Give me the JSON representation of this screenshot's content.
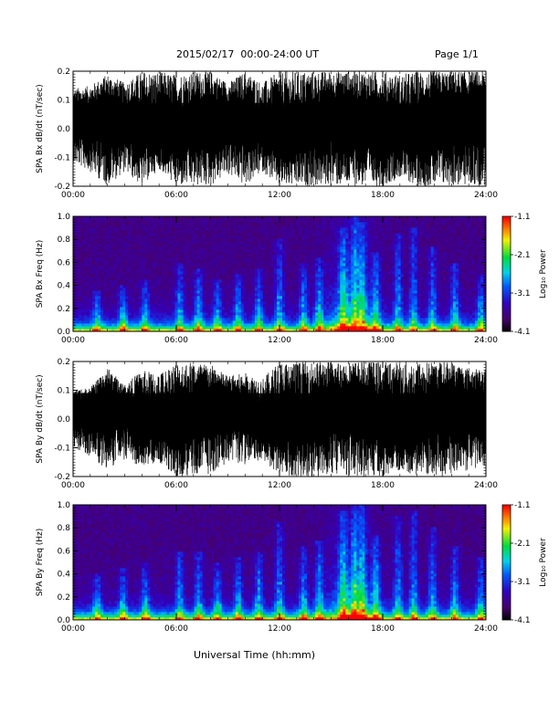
{
  "header": {
    "date_range": "2015/02/17  00:00-24:00 UT",
    "page": "Page 1/1"
  },
  "footer": {
    "xlabel": "Universal Time (hh:mm)"
  },
  "chart_data": [
    {
      "type": "line",
      "ylabel": "SPA Bx dB/dt (nT/sec)",
      "x_ticks": [
        "00:00",
        "06:00",
        "12:00",
        "18:00",
        "24:00"
      ],
      "xlim": [
        0,
        24
      ],
      "y_ticks": [
        "0.2",
        "0.1",
        "0.0",
        "-0.1",
        "-0.2"
      ],
      "y_tick_values": [
        0.2,
        0.1,
        0.0,
        -0.1,
        -0.2
      ],
      "ylim": [
        -0.2,
        0.2
      ],
      "x": [
        0,
        1,
        2,
        3,
        4,
        5,
        6,
        7,
        8,
        9,
        10,
        11,
        12,
        13,
        14,
        15,
        16,
        17,
        18,
        19,
        20,
        21,
        22,
        23,
        24
      ],
      "y_max": [
        0.14,
        0.15,
        0.19,
        0.16,
        0.2,
        0.2,
        0.19,
        0.2,
        0.2,
        0.16,
        0.2,
        0.16,
        0.2,
        0.2,
        0.2,
        0.2,
        0.2,
        0.2,
        0.2,
        0.19,
        0.2,
        0.2,
        0.2,
        0.2,
        0.2
      ],
      "y_min": [
        -0.12,
        -0.15,
        -0.2,
        -0.15,
        -0.2,
        -0.14,
        -0.2,
        -0.2,
        -0.2,
        -0.16,
        -0.2,
        -0.15,
        -0.2,
        -0.2,
        -0.2,
        -0.2,
        -0.2,
        -0.2,
        -0.2,
        -0.17,
        -0.2,
        -0.2,
        -0.2,
        -0.2,
        -0.2
      ]
    },
    {
      "type": "heatmap",
      "ylabel": "SPA Bx Freq (Hz)",
      "x_ticks": [
        "00:00",
        "06:00",
        "12:00",
        "18:00",
        "24:00"
      ],
      "xlim": [
        0,
        24
      ],
      "y_ticks": [
        "1.0",
        "0.8",
        "0.6",
        "0.4",
        "0.2",
        "0.0"
      ],
      "y_tick_values": [
        1.0,
        0.8,
        0.6,
        0.4,
        0.2,
        0.0
      ],
      "ylim": [
        0,
        1
      ],
      "colorbar_label": "Log₁₀ Power",
      "colorbar_ticks": [
        "-1.1",
        "-2.1",
        "-3.1",
        "-4.1"
      ],
      "colorbar_tick_values": [
        -1.1,
        -2.1,
        -3.1,
        -4.1
      ],
      "zlim": [
        -4.1,
        -1.1
      ],
      "burst_hours": [
        1.4,
        2.9,
        4.2,
        6.2,
        7.3,
        8.4,
        9.6,
        10.8,
        12.0,
        13.4,
        14.3,
        15.7,
        16.4,
        16.8,
        17.6,
        18.9,
        19.8,
        20.9,
        22.2,
        23.7
      ],
      "burst_top_freq": [
        0.35,
        0.4,
        0.45,
        0.6,
        0.55,
        0.45,
        0.5,
        0.55,
        0.8,
        0.6,
        0.65,
        0.9,
        1.0,
        0.95,
        0.7,
        0.85,
        0.9,
        0.75,
        0.6,
        0.5
      ]
    },
    {
      "type": "line",
      "ylabel": "SPA By dB/dt (nT/sec)",
      "x_ticks": [
        "00:00",
        "06:00",
        "12:00",
        "18:00",
        "24:00"
      ],
      "xlim": [
        0,
        24
      ],
      "y_ticks": [
        "0.2",
        "0.1",
        "0.0",
        "-0.1",
        "-0.2"
      ],
      "y_tick_values": [
        0.2,
        0.1,
        0.0,
        -0.1,
        -0.2
      ],
      "ylim": [
        -0.2,
        0.2
      ],
      "x": [
        0,
        1,
        2,
        3,
        4,
        5,
        6,
        7,
        8,
        9,
        10,
        11,
        12,
        13,
        14,
        15,
        16,
        17,
        18,
        19,
        20,
        21,
        22,
        23,
        24
      ],
      "y_max": [
        0.1,
        0.11,
        0.18,
        0.12,
        0.17,
        0.16,
        0.2,
        0.2,
        0.19,
        0.15,
        0.16,
        0.14,
        0.2,
        0.2,
        0.2,
        0.2,
        0.2,
        0.2,
        0.2,
        0.2,
        0.2,
        0.2,
        0.2,
        0.18,
        0.17
      ],
      "y_min": [
        -0.1,
        -0.13,
        -0.18,
        -0.14,
        -0.17,
        -0.15,
        -0.2,
        -0.2,
        -0.19,
        -0.15,
        -0.16,
        -0.14,
        -0.2,
        -0.2,
        -0.2,
        -0.2,
        -0.2,
        -0.2,
        -0.2,
        -0.18,
        -0.2,
        -0.2,
        -0.2,
        -0.18,
        -0.16
      ]
    },
    {
      "type": "heatmap",
      "ylabel": "SPA By Freq (Hz)",
      "x_ticks": [
        "00:00",
        "06:00",
        "12:00",
        "18:00",
        "24:00"
      ],
      "xlim": [
        0,
        24
      ],
      "y_ticks": [
        "1.0",
        "0.8",
        "0.6",
        "0.4",
        "0.2",
        "0.0"
      ],
      "y_tick_values": [
        1.0,
        0.8,
        0.6,
        0.4,
        0.2,
        0.0
      ],
      "ylim": [
        0,
        1
      ],
      "colorbar_label": "Log₁₀ Power",
      "colorbar_ticks": [
        "-1.1",
        "-2.1",
        "-3.1",
        "-4.1"
      ],
      "colorbar_tick_values": [
        -1.1,
        -2.1,
        -3.1,
        -4.1
      ],
      "zlim": [
        -4.1,
        -1.1
      ],
      "burst_hours": [
        1.4,
        2.9,
        4.2,
        6.2,
        7.3,
        8.4,
        9.6,
        10.8,
        12.0,
        13.4,
        14.3,
        15.7,
        16.4,
        16.8,
        17.6,
        18.9,
        19.8,
        20.9,
        22.2,
        23.7
      ],
      "burst_top_freq": [
        0.4,
        0.45,
        0.5,
        0.6,
        0.6,
        0.5,
        0.55,
        0.6,
        0.85,
        0.65,
        0.7,
        0.95,
        1.0,
        1.0,
        0.75,
        0.9,
        0.95,
        0.8,
        0.65,
        0.55
      ]
    }
  ]
}
